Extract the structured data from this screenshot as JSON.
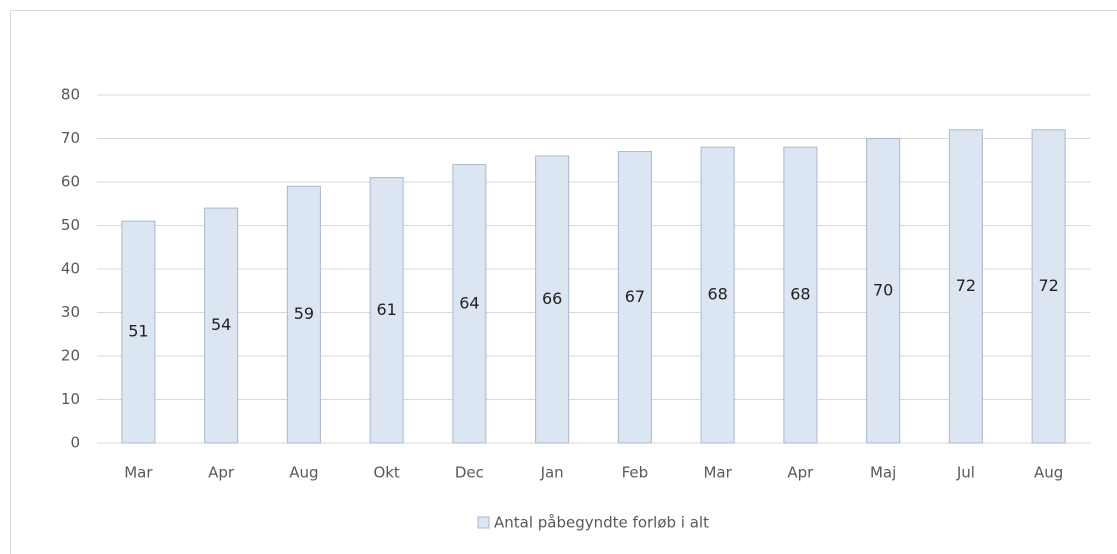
{
  "chart_data": {
    "type": "bar",
    "categories": [
      "Mar",
      "Apr",
      "Aug",
      "Okt",
      "Dec",
      "Jan",
      "Feb",
      "Mar",
      "Apr",
      "Maj",
      "Jul",
      "Aug"
    ],
    "series": [
      {
        "name": "Antal påbegyndte forløb i alt",
        "color": "#dce6f2",
        "values": [
          51,
          54,
          59,
          61,
          64,
          66,
          67,
          68,
          68,
          70,
          72,
          72
        ]
      }
    ],
    "ylim": [
      0,
      80
    ],
    "yticks": [
      0,
      10,
      20,
      30,
      40,
      50,
      60,
      70,
      80
    ],
    "grid": true,
    "legend": "bottom"
  }
}
